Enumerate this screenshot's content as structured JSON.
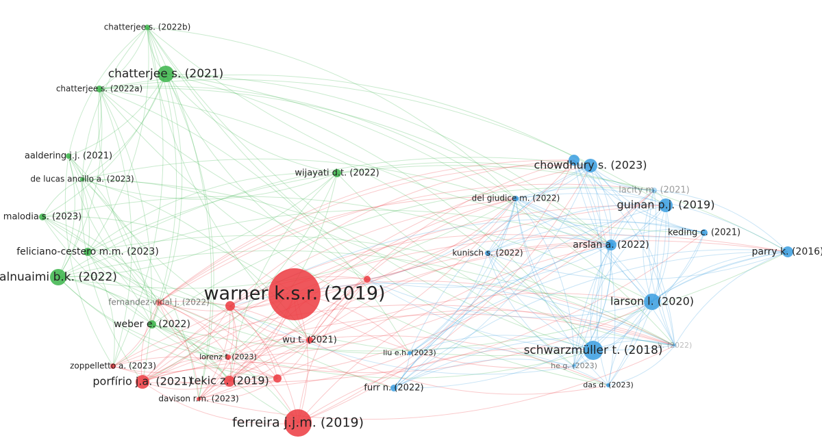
{
  "nodes": [
    {
      "label": "chatterjee s. (2022b)"
    },
    {
      "label": "chatterjee s. (2021)"
    },
    {
      "label": "chatterjee s. (2022a)"
    },
    {
      "label": "aaldering j.j. (2021)"
    },
    {
      "label": "de lucas ancillo a. (2023)"
    },
    {
      "label": "malodia s. (2023)"
    },
    {
      "label": "feliciano-cestero m.m. (2023)"
    },
    {
      "label": "alnuaimi b.k. (2022)"
    },
    {
      "label": "fernandez-vidal j. (2022)"
    },
    {
      "label": "weber e. (2022)"
    },
    {
      "label": "warner k.s.r. (2019)"
    },
    {
      "label": "wijayati d.t. (2022)"
    },
    {
      "label": "wu t. (2021)"
    },
    {
      "label": "lorenz f. (2023)"
    },
    {
      "label": "zoppelletto a. (2023)"
    },
    {
      "label": "porfírio j.a. (2021)"
    },
    {
      "label": "tekic z. (2019)"
    },
    {
      "label": "davison r.m. (2023)"
    },
    {
      "label": "ferreira j.j.m. (2019)"
    },
    {
      "label": "del giudice m. (2022)"
    },
    {
      "label": "chowdhury s. (2023)"
    },
    {
      "label": "lacity m. (2021)"
    },
    {
      "label": "guinan p.j. (2019)"
    },
    {
      "label": "keding c. (2021)"
    },
    {
      "label": "parry k. (2016)"
    },
    {
      "label": "kunisch s. (2022)"
    },
    {
      "label": "arslan a. (2022)"
    },
    {
      "label": "larson l. (2020)"
    },
    {
      "label": "schwarzmüller t. (2018)"
    },
    {
      "label": "liu e.h. (2023)"
    },
    {
      "label": "he g. (2023)"
    },
    {
      "label": "das d. (2023)"
    },
    {
      "label": "furr n. (2022)"
    },
    {
      "label": "b. (2022)"
    }
  ]
}
